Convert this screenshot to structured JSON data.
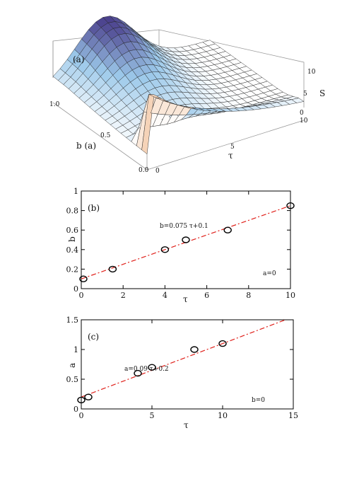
{
  "chart_data": [
    {
      "type": "surface",
      "panel_label": "(a)",
      "xlabel": "b (a)",
      "ylabel": "τ",
      "zlabel": "S",
      "x_ticks": [
        "0.0",
        "0.5",
        "1.0"
      ],
      "y_ticks": [
        "0",
        "5",
        "10"
      ],
      "z_ticks": [
        "0",
        "5",
        "10"
      ],
      "colormap": [
        "#f3c9a8",
        "#ffffff",
        "#9cc9ea",
        "#4a3f8c"
      ],
      "grid": true
    },
    {
      "type": "scatter",
      "panel_label": "(b)",
      "xlabel": "τ",
      "ylabel": "b",
      "xlim": [
        0,
        10
      ],
      "ylim": [
        0,
        1
      ],
      "x_ticks": [
        "0",
        "2",
        "4",
        "6",
        "8",
        "10"
      ],
      "y_ticks": [
        "0",
        "0.2",
        "0.4",
        "0.6",
        "0.8",
        "1"
      ],
      "points": [
        [
          0.1,
          0.1
        ],
        [
          1.5,
          0.2
        ],
        [
          4,
          0.4
        ],
        [
          5,
          0.5
        ],
        [
          7,
          0.6
        ],
        [
          10,
          0.85
        ]
      ],
      "fit": {
        "slope": 0.075,
        "intercept": 0.1,
        "label": "b=0.075 τ+0.1"
      },
      "annotation": "a=0",
      "fit_color": "#e0201a"
    },
    {
      "type": "scatter",
      "panel_label": "(c)",
      "xlabel": "τ",
      "ylabel": "a",
      "xlim": [
        0,
        15
      ],
      "ylim": [
        0,
        1.5
      ],
      "x_ticks": [
        "0",
        "5",
        "10",
        "15"
      ],
      "y_ticks": [
        "0",
        "0.5",
        "1",
        "1.5"
      ],
      "points": [
        [
          0,
          0.15
        ],
        [
          0.5,
          0.2
        ],
        [
          4,
          0.6
        ],
        [
          5,
          0.7
        ],
        [
          8,
          1.0
        ],
        [
          10,
          1.1
        ]
      ],
      "fit": {
        "slope": 0.09,
        "intercept": 0.2,
        "label": "a=0.09 τ+0.2"
      },
      "annotation": "b=0",
      "fit_color": "#e0201a"
    }
  ]
}
